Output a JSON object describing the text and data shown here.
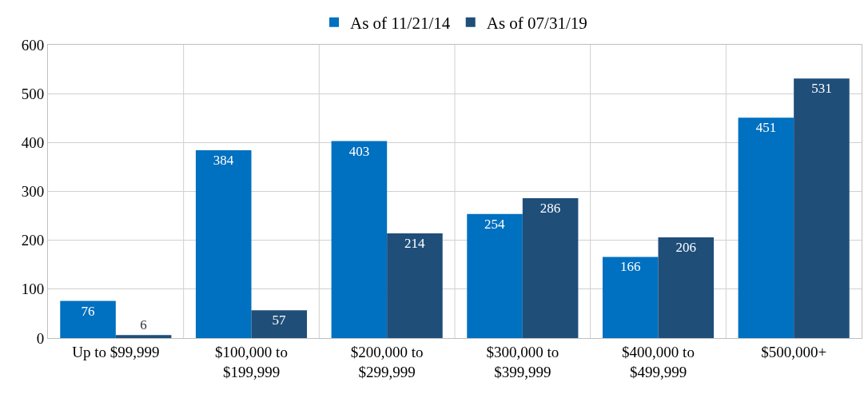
{
  "chart_data": {
    "type": "bar",
    "categories": [
      "Up to $99,999",
      "$100,000 to\n$199,999",
      "$200,000 to\n$299,999",
      "$300,000 to\n$399,999",
      "$400,000 to\n$499,999",
      "$500,000+"
    ],
    "series": [
      {
        "name": "As of 11/21/14",
        "color": "#0070c0",
        "values": [
          76,
          384,
          403,
          254,
          166,
          451
        ]
      },
      {
        "name": "As of 07/31/19",
        "color": "#1f4e79",
        "values": [
          6,
          57,
          214,
          286,
          206,
          531
        ]
      }
    ],
    "ylim": [
      0,
      600
    ],
    "yticks": [
      0,
      100,
      200,
      300,
      400,
      500,
      600
    ],
    "grid": true,
    "legend": "top",
    "data_labels": true
  }
}
